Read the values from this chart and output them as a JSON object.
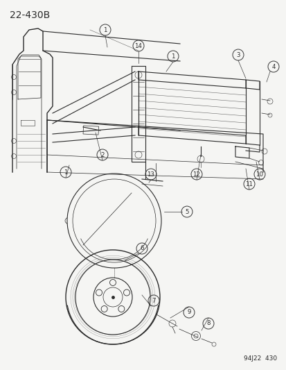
{
  "title": "22-430B",
  "footer": "94J22  430",
  "bg_color": "#f5f5f3",
  "line_color": "#2a2a2a",
  "title_fontsize": 10,
  "footer_fontsize": 6.5
}
